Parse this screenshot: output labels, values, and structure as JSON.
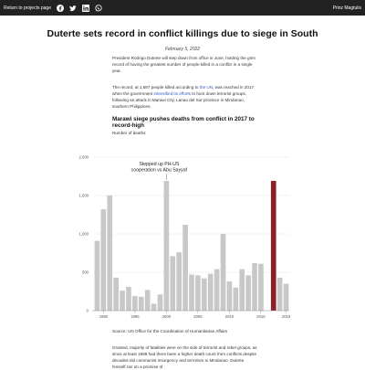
{
  "topbar": {
    "back_label": "Return to projects page",
    "author": "Prinz Magtulis",
    "share_icons": [
      "facebook-icon",
      "twitter-icon",
      "linkedin-icon",
      "whatsapp-icon"
    ]
  },
  "article": {
    "title": "Duterte sets record in conflict killings due to siege in South",
    "date": "February 5, 2022",
    "p1": "President Rodrigo Duterte will step down from office in June, holding the grim record of having the greatest number of people killed in a conflict in a single year.",
    "p2_before_un": "The record, at 1,687 people killed according to ",
    "p2_un": "the UN",
    "p2_middle": ", was reached in 2017 when the government ",
    "p2_link": "intensified its efforts",
    "p2_after": " to hunt down terrorist groups, following an attack in Marawi City, Lanao del Sur province in Mindanao, southern Philippines.",
    "source": "Source: UN Office for the Coordination of Humanitarian Affairs",
    "p3": "Granted, majority of fatalities were on the side of terrorist and rebel groups, as since at least 1989 had there been a higher death count from conflicts despite decades-old communist insurgency and terrorism in Mindanao. Duterte himself ran on a promise of"
  },
  "chart_data": {
    "type": "bar",
    "title": "Marawi siege pushes deaths from conflict in 2017 to record-high",
    "ylabel": "Number of deaths",
    "x": [
      1989,
      1990,
      1991,
      1992,
      1993,
      1994,
      1995,
      1996,
      1997,
      1998,
      1999,
      2000,
      2001,
      2002,
      2003,
      2004,
      2005,
      2006,
      2007,
      2008,
      2009,
      2010,
      2011,
      2012,
      2013,
      2014,
      2015,
      2016,
      2017,
      2018,
      2019
    ],
    "values": [
      910,
      1320,
      1500,
      430,
      260,
      310,
      190,
      180,
      270,
      90,
      210,
      1690,
      710,
      760,
      1120,
      470,
      460,
      420,
      480,
      540,
      1000,
      380,
      300,
      540,
      460,
      620,
      610,
      0,
      1690,
      430,
      350
    ],
    "highlight_year": 2017,
    "highlight_color": "#8e2025",
    "bar_color": "#c8c8c8",
    "ylim": [
      0,
      2000
    ],
    "yticks": [
      0,
      500,
      1000,
      1500,
      2000
    ],
    "ytick_labels": [
      "0",
      "500",
      "1,000",
      "1,500",
      "2,000"
    ],
    "xticks": [
      1990,
      1995,
      2000,
      2005,
      2010,
      2015,
      2019
    ],
    "annotation": {
      "year": 2000,
      "lines": [
        "Stepped up PH-US",
        "cooperation vs Abu Sayyaf"
      ]
    },
    "grid": true
  }
}
